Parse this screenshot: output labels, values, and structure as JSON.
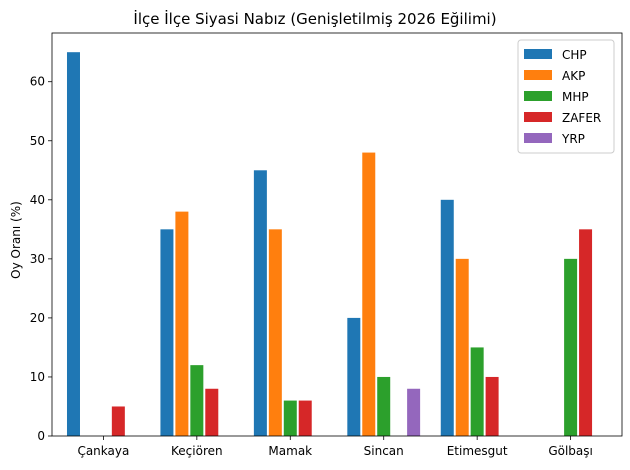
{
  "chart_data": {
    "type": "bar",
    "title": "İlçe İlçe Siyasi Nabız (Genişletilmiş 2026 Eğilimi)",
    "xlabel": "",
    "ylabel": "Oy Oranı (%)",
    "ylim": [
      0,
      68.25
    ],
    "yticks": [
      0,
      10,
      20,
      30,
      40,
      50,
      60
    ],
    "grid": false,
    "legend_position": "top-right",
    "categories": [
      "Çankaya",
      "Keçiören",
      "Mamak",
      "Sincan",
      "Etimesgut",
      "Gölbaşı"
    ],
    "series": [
      {
        "name": "CHP",
        "color": "#1f77b4",
        "values": [
          65,
          35,
          45,
          20,
          40,
          0
        ]
      },
      {
        "name": "AKP",
        "color": "#ff7f0e",
        "values": [
          0,
          38,
          35,
          48,
          30,
          0
        ]
      },
      {
        "name": "MHP",
        "color": "#2ca02c",
        "values": [
          0,
          12,
          6,
          10,
          15,
          30
        ]
      },
      {
        "name": "ZAFER",
        "color": "#d62728",
        "values": [
          5,
          8,
          6,
          0,
          10,
          35
        ]
      },
      {
        "name": "YRP",
        "color": "#9467bd",
        "values": [
          0,
          0,
          0,
          8,
          0,
          0
        ]
      }
    ]
  }
}
